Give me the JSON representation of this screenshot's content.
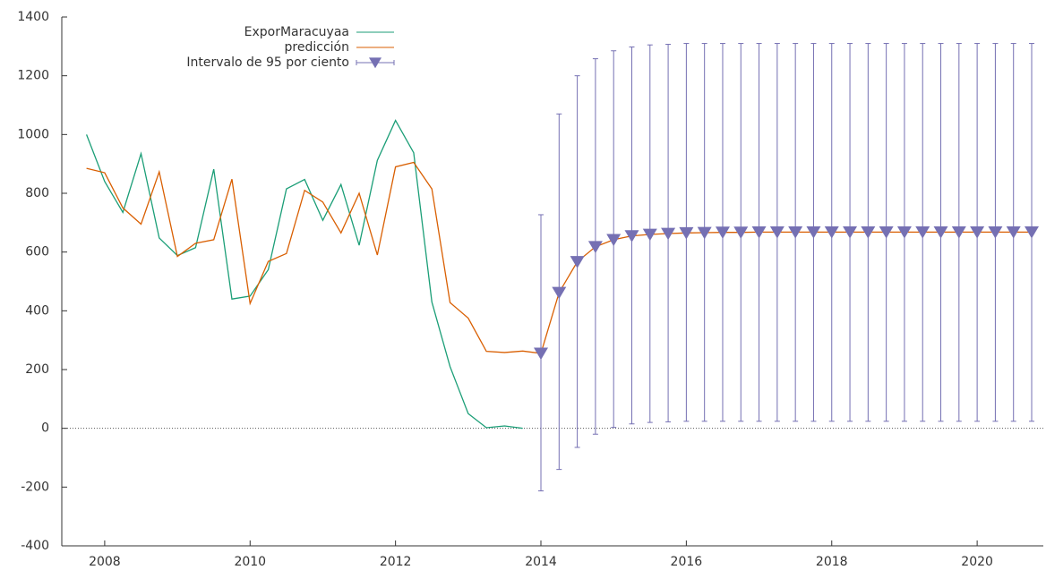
{
  "chart_data": {
    "type": "line",
    "xlim": [
      2007.41,
      2020.91
    ],
    "xticks": [
      2008,
      2010,
      2012,
      2014,
      2016,
      2018,
      2020
    ],
    "ylim": [
      -400,
      1400
    ],
    "yticks": [
      -400,
      -200,
      0,
      200,
      400,
      600,
      800,
      1000,
      1200,
      1400
    ],
    "legend": "top-left",
    "series": [
      {
        "name": "ExporMaracuyaa",
        "color": "#1b9e77",
        "x": [
          2007.75,
          2008,
          2008.25,
          2008.5,
          2008.75,
          2009,
          2009.25,
          2009.5,
          2009.75,
          2010,
          2010.25,
          2010.5,
          2010.75,
          2011,
          2011.25,
          2011.5,
          2011.75,
          2012,
          2012.25,
          2012.5,
          2012.75,
          2013,
          2013.25,
          2013.5,
          2013.75
        ],
        "values": [
          1000,
          840,
          735,
          935,
          648,
          588,
          615,
          882,
          440,
          450,
          540,
          815,
          847,
          708,
          830,
          623,
          912,
          1048,
          938,
          430,
          210,
          50,
          2,
          8,
          0
        ]
      },
      {
        "name": "predicción",
        "color": "#d95f02",
        "x": [
          2007.75,
          2008,
          2008.25,
          2008.5,
          2008.75,
          2009,
          2009.25,
          2009.5,
          2009.75,
          2010,
          2010.25,
          2010.5,
          2010.75,
          2011,
          2011.25,
          2011.5,
          2011.75,
          2012,
          2012.25,
          2012.5,
          2012.75,
          2013,
          2013.25,
          2013.5,
          2013.75,
          2014,
          2014.25,
          2014.5,
          2014.75,
          2015,
          2015.25,
          2015.5,
          2015.75,
          2016,
          2016.25,
          2016.5,
          2016.75,
          2017,
          2017.25,
          2017.5,
          2017.75,
          2018,
          2018.25,
          2018.5,
          2018.75,
          2019,
          2019.25,
          2019.5,
          2019.75,
          2020,
          2020.25,
          2020.5,
          2020.75
        ],
        "values": [
          885,
          870,
          750,
          695,
          873,
          585,
          630,
          642,
          848,
          425,
          568,
          595,
          810,
          770,
          665,
          800,
          590,
          890,
          905,
          815,
          428,
          375,
          262,
          258,
          263,
          255,
          462,
          567,
          618,
          642,
          655,
          660,
          663,
          665,
          666,
          667,
          667,
          668,
          668,
          668,
          668,
          668,
          668,
          668,
          668,
          668,
          668,
          668,
          668,
          668,
          668,
          668,
          668
        ]
      },
      {
        "name": "Intervalo de 95 por ciento",
        "color": "#7570b3",
        "x": [
          2014,
          2014.25,
          2014.5,
          2014.75,
          2015,
          2015.25,
          2015.5,
          2015.75,
          2016,
          2016.25,
          2016.5,
          2016.75,
          2017,
          2017.25,
          2017.5,
          2017.75,
          2018,
          2018.25,
          2018.5,
          2018.75,
          2019,
          2019.25,
          2019.5,
          2019.75,
          2020,
          2020.25,
          2020.5,
          2020.75
        ],
        "values": [
          255,
          462,
          567,
          618,
          642,
          655,
          660,
          663,
          665,
          666,
          667,
          667,
          668,
          668,
          668,
          668,
          668,
          668,
          668,
          668,
          668,
          668,
          668,
          668,
          668,
          668,
          668,
          668
        ],
        "lower": [
          -213,
          -140,
          -65,
          -20,
          3,
          15,
          20,
          22,
          24,
          24,
          24,
          24,
          24,
          24,
          24,
          24,
          24,
          24,
          24,
          24,
          24,
          24,
          24,
          24,
          24,
          24,
          24,
          24
        ],
        "upper": [
          727,
          1070,
          1200,
          1258,
          1285,
          1298,
          1305,
          1307,
          1310,
          1310,
          1310,
          1310,
          1310,
          1310,
          1310,
          1310,
          1310,
          1310,
          1310,
          1310,
          1310,
          1310,
          1310,
          1310,
          1310,
          1310,
          1310,
          1310
        ]
      }
    ]
  }
}
